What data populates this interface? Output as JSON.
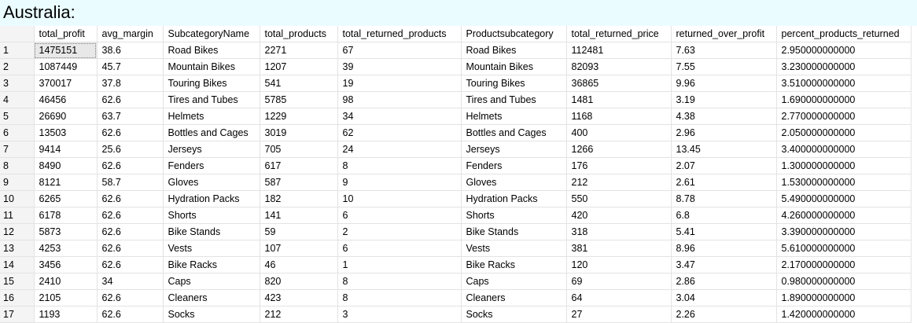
{
  "title": "Australia:",
  "columns": [
    "total_profit",
    "avg_margin",
    "SubcategoryName",
    "total_products",
    "total_returned_products",
    "Productsubcategory",
    "total_returned_price",
    "returned_over_profit",
    "percent_products_returned"
  ],
  "rows": [
    {
      "n": "1",
      "cells": [
        "1475151",
        "38.6",
        "Road Bikes",
        "2271",
        "67",
        "Road Bikes",
        "112481",
        "7.63",
        "2.950000000000"
      ]
    },
    {
      "n": "2",
      "cells": [
        "1087449",
        "45.7",
        "Mountain Bikes",
        "1207",
        "39",
        "Mountain Bikes",
        "82093",
        "7.55",
        "3.230000000000"
      ]
    },
    {
      "n": "3",
      "cells": [
        "370017",
        "37.8",
        "Touring Bikes",
        "541",
        "19",
        "Touring Bikes",
        "36865",
        "9.96",
        "3.510000000000"
      ]
    },
    {
      "n": "4",
      "cells": [
        "46456",
        "62.6",
        "Tires and Tubes",
        "5785",
        "98",
        "Tires and Tubes",
        "1481",
        "3.19",
        "1.690000000000"
      ]
    },
    {
      "n": "5",
      "cells": [
        "26690",
        "63.7",
        "Helmets",
        "1229",
        "34",
        "Helmets",
        "1168",
        "4.38",
        "2.770000000000"
      ]
    },
    {
      "n": "6",
      "cells": [
        "13503",
        "62.6",
        "Bottles and Cages",
        "3019",
        "62",
        "Bottles and Cages",
        "400",
        "2.96",
        "2.050000000000"
      ]
    },
    {
      "n": "7",
      "cells": [
        "9414",
        "25.6",
        "Jerseys",
        "705",
        "24",
        "Jerseys",
        "1266",
        "13.45",
        "3.400000000000"
      ]
    },
    {
      "n": "8",
      "cells": [
        "8490",
        "62.6",
        "Fenders",
        "617",
        "8",
        "Fenders",
        "176",
        "2.07",
        "1.300000000000"
      ]
    },
    {
      "n": "9",
      "cells": [
        "8121",
        "58.7",
        "Gloves",
        "587",
        "9",
        "Gloves",
        "212",
        "2.61",
        "1.530000000000"
      ]
    },
    {
      "n": "10",
      "cells": [
        "6265",
        "62.6",
        "Hydration Packs",
        "182",
        "10",
        "Hydration Packs",
        "550",
        "8.78",
        "5.490000000000"
      ]
    },
    {
      "n": "11",
      "cells": [
        "6178",
        "62.6",
        "Shorts",
        "141",
        "6",
        "Shorts",
        "420",
        "6.8",
        "4.260000000000"
      ]
    },
    {
      "n": "12",
      "cells": [
        "5873",
        "62.6",
        "Bike Stands",
        "59",
        "2",
        "Bike Stands",
        "318",
        "5.41",
        "3.390000000000"
      ]
    },
    {
      "n": "13",
      "cells": [
        "4253",
        "62.6",
        "Vests",
        "107",
        "6",
        "Vests",
        "381",
        "8.96",
        "5.610000000000"
      ]
    },
    {
      "n": "14",
      "cells": [
        "3456",
        "62.6",
        "Bike Racks",
        "46",
        "1",
        "Bike Racks",
        "120",
        "3.47",
        "2.170000000000"
      ]
    },
    {
      "n": "15",
      "cells": [
        "2410",
        "34",
        "Caps",
        "820",
        "8",
        "Caps",
        "69",
        "2.86",
        "0.980000000000"
      ]
    },
    {
      "n": "16",
      "cells": [
        "2105",
        "62.6",
        "Cleaners",
        "423",
        "8",
        "Cleaners",
        "64",
        "3.04",
        "1.890000000000"
      ]
    },
    {
      "n": "17",
      "cells": [
        "1193",
        "62.6",
        "Socks",
        "212",
        "3",
        "Socks",
        "27",
        "2.26",
        "1.420000000000"
      ]
    }
  ]
}
